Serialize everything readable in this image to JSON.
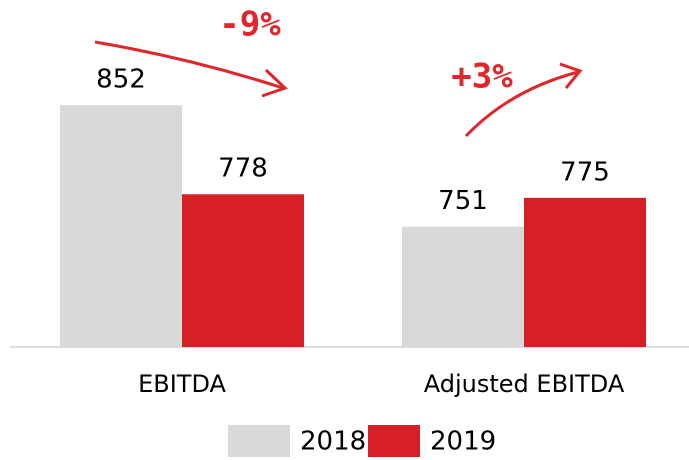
{
  "chart_data": {
    "type": "bar",
    "categories": [
      "EBITDA",
      "Adjusted EBITDA"
    ],
    "series": [
      {
        "name": "2018",
        "color": "#d9d9d9",
        "values": [
          852,
          751
        ]
      },
      {
        "name": "2019",
        "color": "#d71f26",
        "values": [
          778,
          775
        ]
      }
    ],
    "ylim": [
      651,
      900
    ],
    "annotations": [
      "-9%",
      "+3%"
    ]
  }
}
